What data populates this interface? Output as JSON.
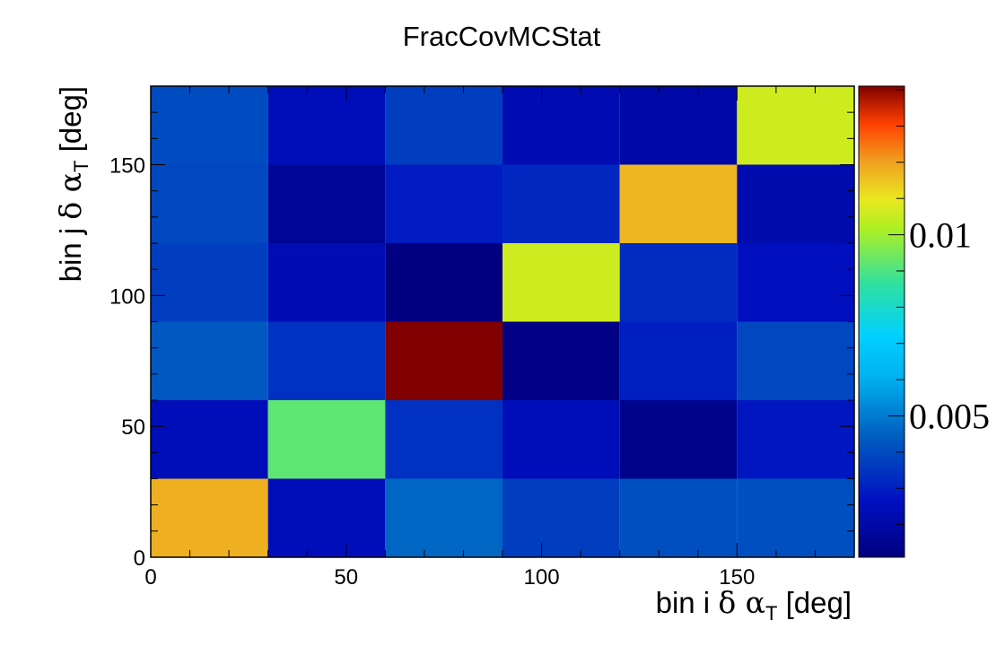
{
  "chart_data": {
    "type": "heatmap",
    "title": "FracCovMCStat",
    "xlabel": {
      "prefix": "bin i ",
      "greek": "δ α",
      "sub": "T",
      "suffix": " [deg]"
    },
    "ylabel": {
      "prefix": "bin j ",
      "greek": "δ α",
      "sub": "T",
      "suffix": " [deg]"
    },
    "x_edges": [
      0,
      30,
      60,
      90,
      120,
      150,
      180
    ],
    "y_edges": [
      0,
      30,
      60,
      90,
      120,
      150,
      180
    ],
    "xlim": [
      0,
      180
    ],
    "ylim": [
      0,
      180
    ],
    "x_ticks": [
      0,
      50,
      100,
      150
    ],
    "y_ticks": [
      0,
      50,
      100,
      150
    ],
    "zlim": [
      0.0011,
      0.0141
    ],
    "z_ticks": [
      {
        "value": 0.005,
        "label": "0.005"
      },
      {
        "value": 0.01,
        "label": "0.01"
      }
    ],
    "colormap": "rainbow",
    "legend_position": "right",
    "values": [
      [
        0.0118,
        0.0025,
        0.0046,
        0.0037,
        0.0041,
        0.0041
      ],
      [
        0.0025,
        0.0092,
        0.0034,
        0.0025,
        0.0014,
        0.0028
      ],
      [
        0.0043,
        0.0034,
        0.0141,
        0.0012,
        0.003,
        0.0039
      ],
      [
        0.0037,
        0.0024,
        0.0011,
        0.0106,
        0.0033,
        0.0026
      ],
      [
        0.0039,
        0.0016,
        0.0029,
        0.0032,
        0.0117,
        0.0022
      ],
      [
        0.004,
        0.0025,
        0.0037,
        0.0023,
        0.002,
        0.0106
      ]
    ]
  }
}
